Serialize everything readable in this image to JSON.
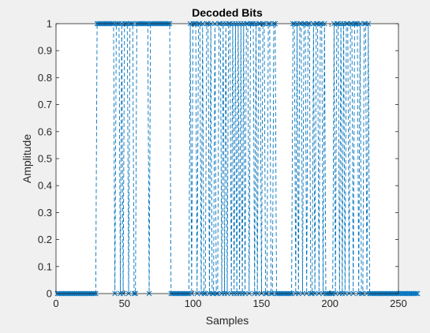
{
  "chart_data": {
    "type": "line",
    "title": "Decoded Bits",
    "xlabel": "Samples",
    "ylabel": "Amplitude",
    "xlim": [
      0,
      250
    ],
    "ylim": [
      0,
      1
    ],
    "xticks": [
      0,
      50,
      100,
      150,
      200,
      250
    ],
    "yticks": [
      0,
      0.1,
      0.2,
      0.3,
      0.4,
      0.5,
      0.6,
      0.7,
      0.8,
      0.9,
      1
    ],
    "grid": false,
    "line_style": "dashed",
    "marker": "x",
    "line_color": "#0072bd",
    "series": [
      {
        "values": [
          0,
          0,
          0,
          0,
          0,
          0,
          0,
          0,
          0,
          0,
          0,
          0,
          0,
          0,
          0,
          0,
          0,
          0,
          0,
          0,
          0,
          0,
          0,
          0,
          0,
          0,
          0,
          0,
          0,
          1,
          1,
          1,
          1,
          1,
          1,
          1,
          1,
          1,
          1,
          1,
          1,
          1,
          0,
          1,
          1,
          1,
          0,
          1,
          0,
          1,
          1,
          1,
          0,
          1,
          1,
          1,
          0,
          0,
          1,
          1,
          1,
          1,
          1,
          1,
          1,
          1,
          1,
          0,
          1,
          1,
          1,
          1,
          1,
          1,
          1,
          1,
          1,
          1,
          1,
          1,
          1,
          1,
          1,
          0,
          0,
          0,
          0,
          0,
          0,
          0,
          0,
          0,
          0,
          0,
          0,
          0,
          0,
          1,
          0,
          1,
          1,
          1,
          0,
          1,
          1,
          0,
          1,
          0,
          0,
          1,
          1,
          0,
          1,
          0,
          0,
          1,
          0,
          0,
          1,
          1,
          0,
          1,
          0,
          1,
          0,
          1,
          1,
          0,
          1,
          0,
          1,
          0,
          1,
          0,
          1,
          0,
          1,
          0,
          1,
          1,
          0,
          1,
          1,
          1,
          0,
          1,
          0,
          1,
          1,
          0,
          1,
          1,
          0,
          0,
          1,
          1,
          0,
          0,
          1,
          1,
          0,
          0,
          0,
          0,
          0,
          0,
          0,
          0,
          0,
          0,
          0,
          0,
          1,
          1,
          0,
          1,
          0,
          1,
          1,
          0,
          1,
          1,
          0,
          1,
          1,
          0,
          0,
          1,
          0,
          1,
          1,
          0,
          1,
          1,
          0,
          1,
          0,
          0,
          0,
          0,
          0,
          0,
          1,
          0,
          1,
          1,
          0,
          1,
          0,
          1,
          0,
          1,
          1,
          0,
          1,
          1,
          0,
          1,
          1,
          1,
          0,
          1,
          0,
          0,
          1,
          1,
          0,
          1,
          0,
          0,
          0,
          0,
          0,
          0,
          0,
          0,
          0,
          0,
          0,
          0,
          0,
          0,
          0,
          0,
          0,
          0,
          0,
          0,
          0,
          0,
          0,
          0,
          0,
          0,
          0,
          0,
          0,
          0,
          0,
          0,
          0,
          0,
          0,
          0
        ]
      }
    ]
  }
}
